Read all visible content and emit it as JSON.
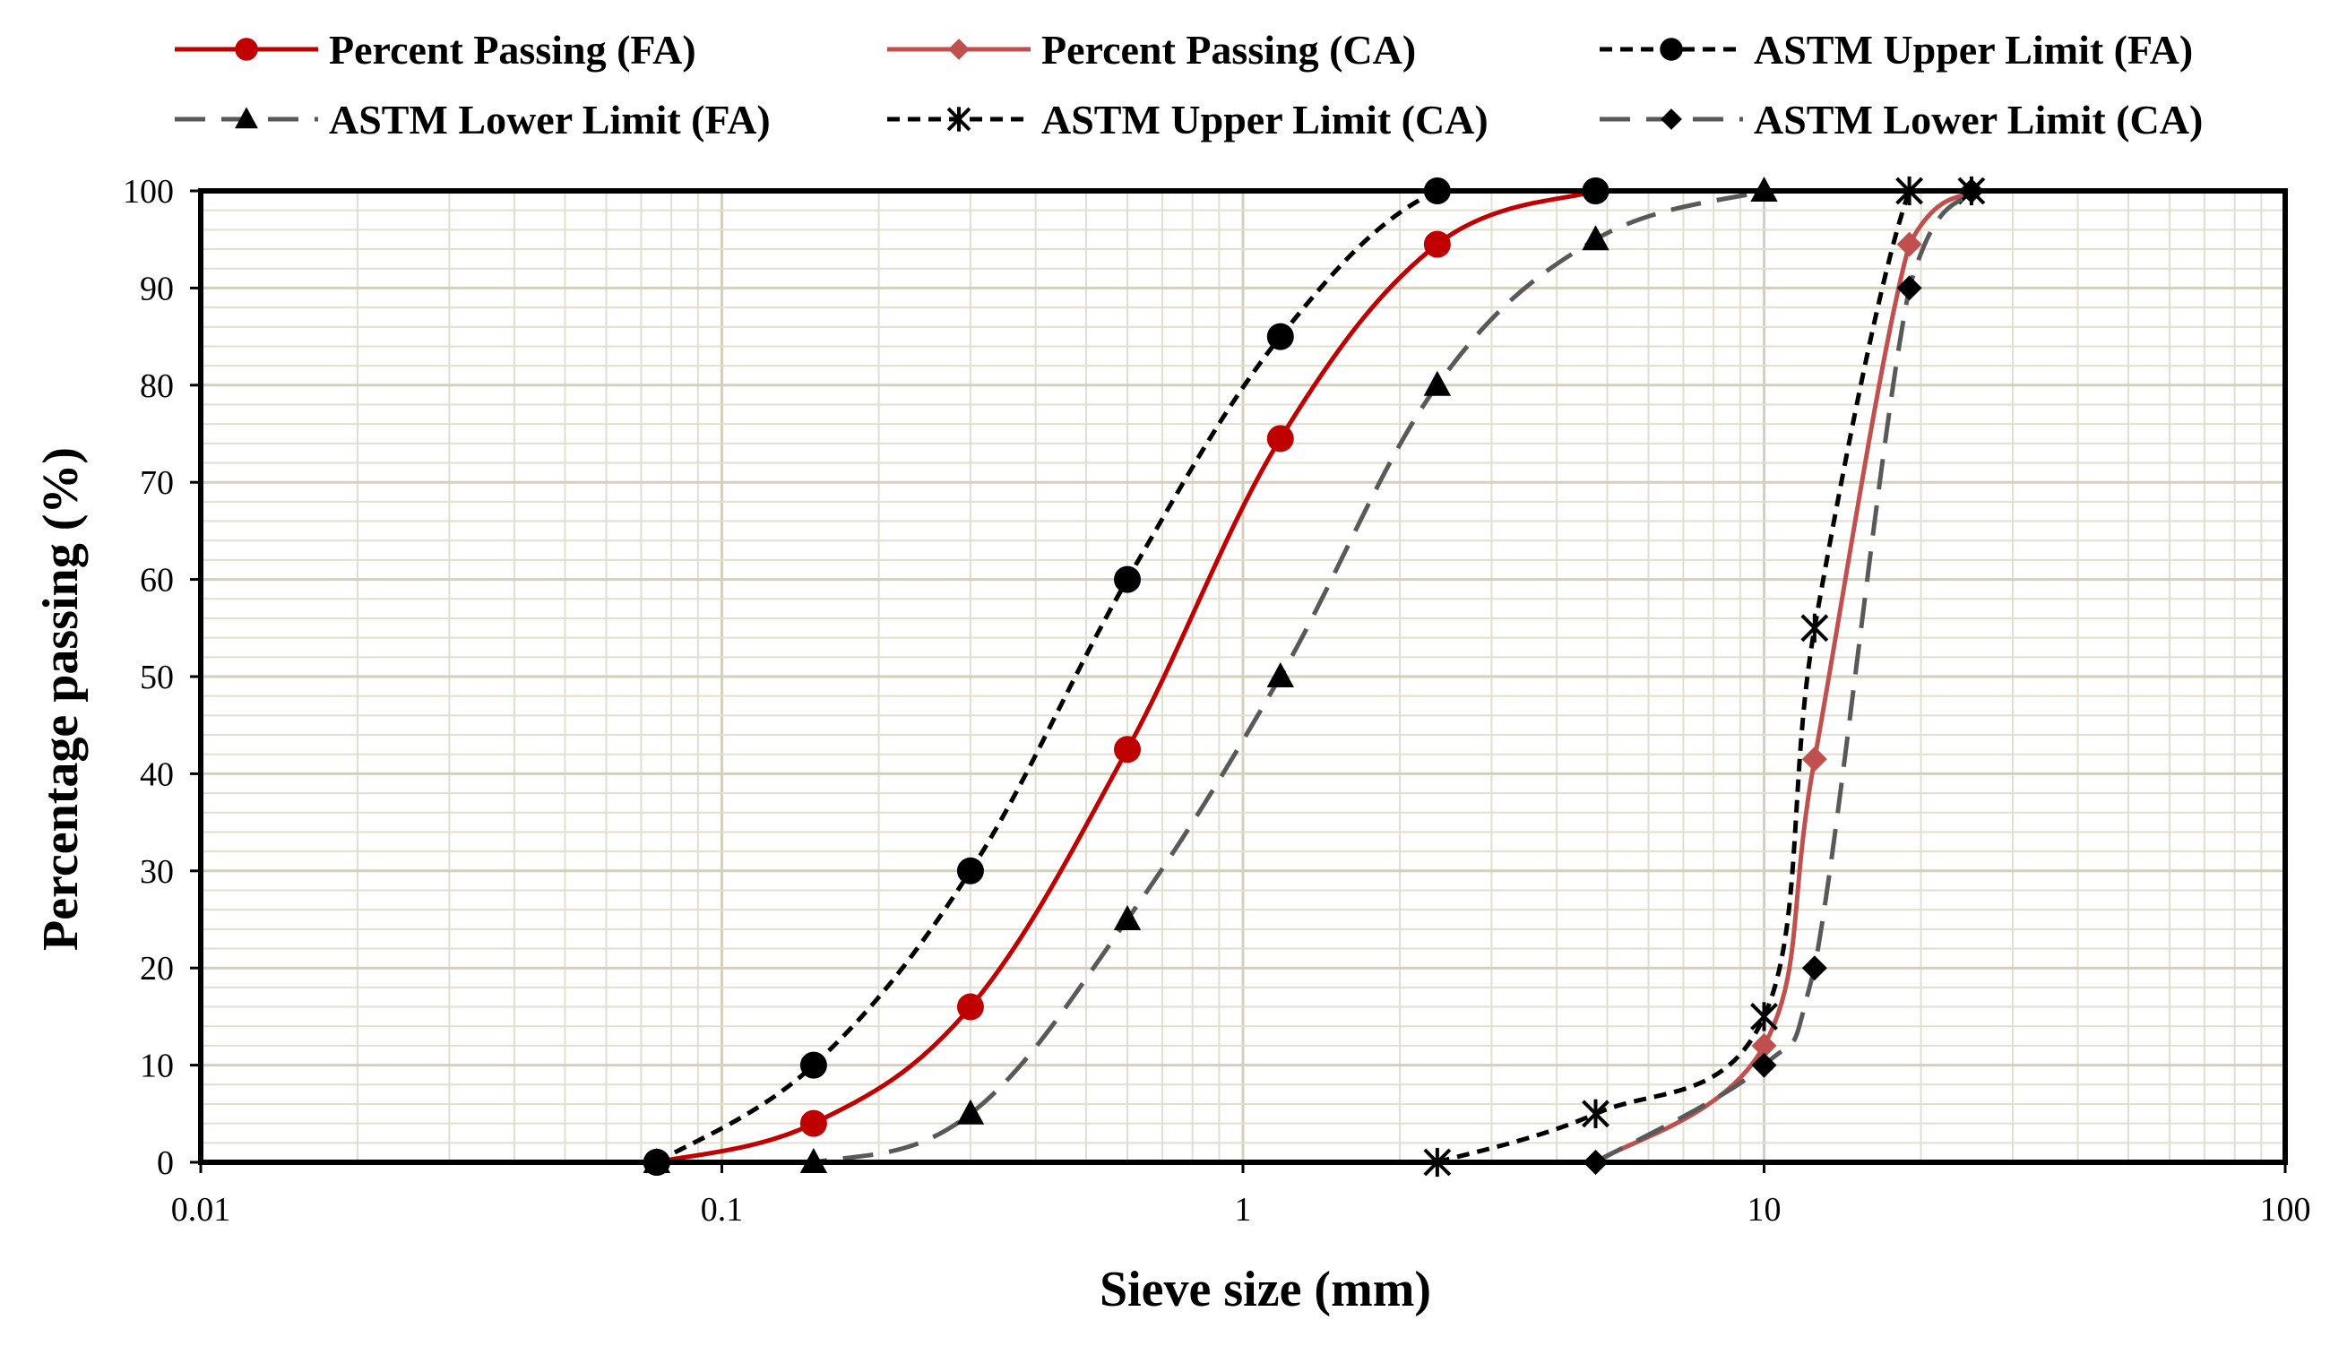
{
  "chart_data": {
    "type": "line",
    "title": "",
    "xlabel": "Sieve size (mm)",
    "ylabel": "Percentage passing (%)",
    "xscale": "log",
    "xlim": [
      0.01,
      100
    ],
    "ylim": [
      0,
      100
    ],
    "xticks": [
      0.01,
      0.1,
      1,
      10,
      100
    ],
    "xtick_labels": [
      "0.01",
      "0.1",
      "1",
      "10",
      "100"
    ],
    "yticks": [
      0,
      10,
      20,
      30,
      40,
      50,
      60,
      70,
      80,
      90,
      100
    ],
    "ytick_labels": [
      "0",
      "10",
      "20",
      "30",
      "40",
      "50",
      "60",
      "70",
      "80",
      "90",
      "100"
    ],
    "grid": "major and minor (log) gridlines",
    "legend_position": "top",
    "series": [
      {
        "name": "Percent Passing (FA)",
        "color": "#c00000",
        "line": "solid",
        "marker": "circle",
        "x": [
          0.075,
          0.15,
          0.3,
          0.6,
          1.18,
          2.36,
          4.75
        ],
        "y": [
          0,
          4,
          16,
          42.5,
          74.5,
          94.5,
          100
        ]
      },
      {
        "name": "Percent Passing (CA)",
        "color": "#c0504d",
        "line": "solid",
        "marker": "diamond",
        "x": [
          4.75,
          10,
          12.5,
          19,
          25
        ],
        "y": [
          0,
          12,
          41.5,
          94.5,
          100
        ]
      },
      {
        "name": "ASTM Upper Limit (FA)",
        "color": "#000000",
        "line": "dotted",
        "marker": "circle",
        "x": [
          0.075,
          0.15,
          0.3,
          0.6,
          1.18,
          2.36,
          4.75
        ],
        "y": [
          0,
          10,
          30,
          60,
          85,
          100,
          100
        ]
      },
      {
        "name": "ASTM Lower Limit (FA)",
        "color": "#595959",
        "line": "dashed",
        "marker": "triangle",
        "x": [
          0.075,
          0.15,
          0.3,
          0.6,
          1.18,
          2.36,
          4.75,
          10
        ],
        "y": [
          0,
          0,
          5,
          25,
          50,
          80,
          95,
          100
        ]
      },
      {
        "name": "ASTM Upper Limit (CA)",
        "color": "#000000",
        "line": "dotted",
        "marker": "asterisk",
        "x": [
          2.36,
          4.75,
          10,
          12.5,
          19,
          25
        ],
        "y": [
          0,
          5,
          15,
          55,
          100,
          100
        ]
      },
      {
        "name": "ASTM Lower Limit (CA)",
        "color": "#595959",
        "line": "dashed",
        "marker": "diamond",
        "x": [
          4.75,
          10,
          12.5,
          19,
          25
        ],
        "y": [
          0,
          10,
          20,
          90,
          100
        ]
      }
    ]
  }
}
